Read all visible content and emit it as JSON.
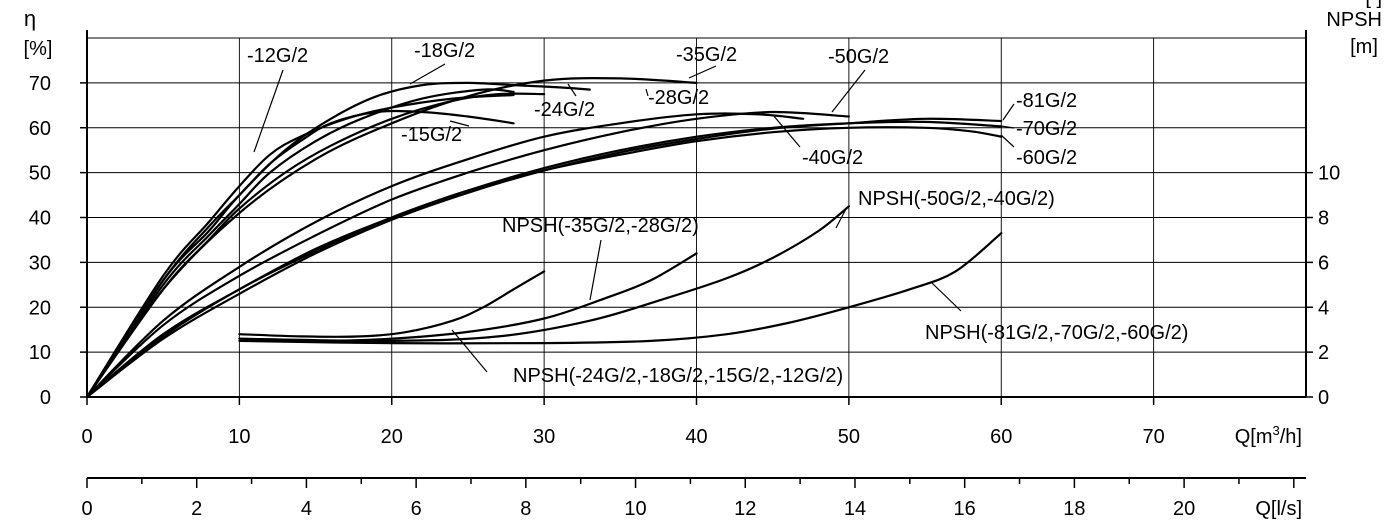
{
  "chart_data": {
    "type": "line",
    "grid": true,
    "y_left": {
      "symbol": "η",
      "unit": "[%]",
      "ticks": [
        0,
        10,
        20,
        30,
        40,
        50,
        60,
        70
      ],
      "range": [
        0,
        80
      ]
    },
    "y_right": {
      "title": "NPSH",
      "unit": "[m]",
      "ticks": [
        0,
        2,
        4,
        6,
        8,
        10
      ],
      "range": [
        0,
        16
      ]
    },
    "x_main": {
      "label": "Q[m³/h]",
      "label_main": "Q[m",
      "label_sup": "3",
      "label_end": "/h]",
      "ticks": [
        0,
        10,
        20,
        30,
        40,
        50,
        60,
        70
      ],
      "range": [
        0,
        80
      ]
    },
    "x_secondary": {
      "label": "Q[l/s]",
      "ticks": [
        0,
        2,
        4,
        6,
        8,
        10,
        12,
        14,
        16,
        18,
        20
      ],
      "minor_step": 1,
      "range": [
        0,
        22.22
      ]
    },
    "corner_partial": "[ ]",
    "series": [
      {
        "name": "-12G/2",
        "axis": "efficiency",
        "points": [
          [
            0,
            0
          ],
          [
            5,
            27
          ],
          [
            8,
            39
          ],
          [
            10,
            47
          ],
          [
            12,
            54
          ],
          [
            14,
            58
          ],
          [
            17,
            62
          ],
          [
            20,
            64.5
          ],
          [
            24,
            66.5
          ],
          [
            28,
            67.3
          ]
        ]
      },
      {
        "name": "-15G/2",
        "axis": "efficiency",
        "points": [
          [
            0,
            0
          ],
          [
            5,
            26
          ],
          [
            8,
            38
          ],
          [
            10,
            45
          ],
          [
            12,
            52
          ],
          [
            14,
            57
          ],
          [
            16,
            61
          ],
          [
            19,
            63.5
          ],
          [
            22,
            63.5
          ],
          [
            25,
            62.5
          ],
          [
            28,
            61
          ]
        ]
      },
      {
        "name": "-18G/2",
        "axis": "efficiency",
        "points": [
          [
            0,
            0
          ],
          [
            5,
            25
          ],
          [
            8,
            36
          ],
          [
            10,
            43
          ],
          [
            12,
            50
          ],
          [
            15,
            57
          ],
          [
            18,
            62
          ],
          [
            22,
            66.5
          ],
          [
            26,
            68.5
          ],
          [
            28,
            68
          ]
        ]
      },
      {
        "name": "-24G/2",
        "axis": "efficiency",
        "points": [
          [
            0,
            0
          ],
          [
            5,
            24
          ],
          [
            8,
            35
          ],
          [
            10,
            42
          ],
          [
            13,
            50
          ],
          [
            16,
            56
          ],
          [
            20,
            62
          ],
          [
            24,
            66
          ],
          [
            27,
            67.5
          ],
          [
            30,
            67.5
          ]
        ]
      },
      {
        "name": "-28G/2",
        "axis": "efficiency",
        "points": [
          [
            0,
            0
          ],
          [
            5,
            26
          ],
          [
            8,
            37
          ],
          [
            10,
            45
          ],
          [
            13,
            55
          ],
          [
            16,
            62
          ],
          [
            19,
            67
          ],
          [
            22,
            69.5
          ],
          [
            25,
            70
          ],
          [
            28,
            69.5
          ],
          [
            31,
            69
          ],
          [
            33,
            68.5
          ]
        ]
      },
      {
        "name": "-35G/2",
        "axis": "efficiency",
        "points": [
          [
            0,
            0
          ],
          [
            5,
            24
          ],
          [
            10,
            41
          ],
          [
            15,
            53
          ],
          [
            20,
            61
          ],
          [
            25,
            67
          ],
          [
            30,
            70.5
          ],
          [
            35,
            71
          ],
          [
            40,
            70
          ]
        ]
      },
      {
        "name": "-40G/2",
        "axis": "efficiency",
        "points": [
          [
            0,
            0
          ],
          [
            5,
            17
          ],
          [
            10,
            29
          ],
          [
            15,
            39
          ],
          [
            20,
            47
          ],
          [
            25,
            53
          ],
          [
            30,
            58
          ],
          [
            35,
            61
          ],
          [
            40,
            63
          ],
          [
            44,
            63
          ],
          [
            47,
            62
          ]
        ]
      },
      {
        "name": "-50G/2",
        "axis": "efficiency",
        "points": [
          [
            0,
            0
          ],
          [
            5,
            16
          ],
          [
            10,
            27
          ],
          [
            15,
            36
          ],
          [
            20,
            44
          ],
          [
            25,
            50
          ],
          [
            30,
            55
          ],
          [
            35,
            59
          ],
          [
            40,
            62
          ],
          [
            45,
            63.5
          ],
          [
            50,
            62.5
          ]
        ]
      },
      {
        "name": "-60G/2",
        "axis": "efficiency",
        "points": [
          [
            0,
            0
          ],
          [
            5,
            14
          ],
          [
            10,
            24
          ],
          [
            15,
            33
          ],
          [
            20,
            40
          ],
          [
            25,
            46
          ],
          [
            30,
            50.5
          ],
          [
            35,
            54
          ],
          [
            40,
            57
          ],
          [
            45,
            59
          ],
          [
            50,
            60
          ],
          [
            55,
            60
          ],
          [
            58,
            59.2
          ],
          [
            60,
            58
          ]
        ]
      },
      {
        "name": "-70G/2",
        "axis": "efficiency",
        "points": [
          [
            0,
            0
          ],
          [
            5,
            13.5
          ],
          [
            10,
            24
          ],
          [
            15,
            32.5
          ],
          [
            20,
            40
          ],
          [
            25,
            46
          ],
          [
            30,
            51
          ],
          [
            35,
            55
          ],
          [
            40,
            58
          ],
          [
            45,
            60
          ],
          [
            50,
            61
          ],
          [
            55,
            61.3
          ],
          [
            60,
            60.3
          ]
        ]
      },
      {
        "name": "-81G/2",
        "axis": "efficiency",
        "points": [
          [
            0,
            0
          ],
          [
            5,
            13
          ],
          [
            10,
            23
          ],
          [
            15,
            32
          ],
          [
            20,
            39.5
          ],
          [
            25,
            45.5
          ],
          [
            30,
            50.5
          ],
          [
            35,
            54.5
          ],
          [
            40,
            57.5
          ],
          [
            45,
            59.8
          ],
          [
            50,
            61
          ],
          [
            55,
            62
          ],
          [
            60,
            61.5
          ]
        ]
      },
      {
        "name": "NPSH(-24G/2,-18G/2,-15G/2,-12G/2)",
        "axis": "npsh",
        "points": [
          [
            10,
            2.8
          ],
          [
            14,
            2.7
          ],
          [
            18,
            2.7
          ],
          [
            21,
            2.9
          ],
          [
            24,
            3.4
          ],
          [
            26,
            4.0
          ],
          [
            28,
            4.8
          ],
          [
            30,
            5.6
          ]
        ]
      },
      {
        "name": "NPSH(-35G/2,-28G/2)",
        "axis": "npsh",
        "points": [
          [
            10,
            2.6
          ],
          [
            15,
            2.5
          ],
          [
            20,
            2.6
          ],
          [
            25,
            2.9
          ],
          [
            30,
            3.5
          ],
          [
            34,
            4.4
          ],
          [
            37,
            5.2
          ],
          [
            40,
            6.4
          ]
        ]
      },
      {
        "name": "NPSH(-50G/2,-40G/2)",
        "axis": "npsh",
        "points": [
          [
            10,
            2.6
          ],
          [
            20,
            2.5
          ],
          [
            27,
            2.7
          ],
          [
            33,
            3.4
          ],
          [
            38,
            4.4
          ],
          [
            42,
            5.3
          ],
          [
            45,
            6.2
          ],
          [
            48,
            7.4
          ],
          [
            50,
            8.5
          ]
        ]
      },
      {
        "name": "NPSH(-81G/2,-70G/2,-60G/2)",
        "axis": "npsh",
        "points": [
          [
            10,
            2.5
          ],
          [
            20,
            2.4
          ],
          [
            30,
            2.4
          ],
          [
            37,
            2.5
          ],
          [
            42,
            2.8
          ],
          [
            46,
            3.3
          ],
          [
            50,
            4.0
          ],
          [
            54,
            4.8
          ],
          [
            57,
            5.6
          ],
          [
            60,
            7.3
          ]
        ]
      }
    ]
  }
}
